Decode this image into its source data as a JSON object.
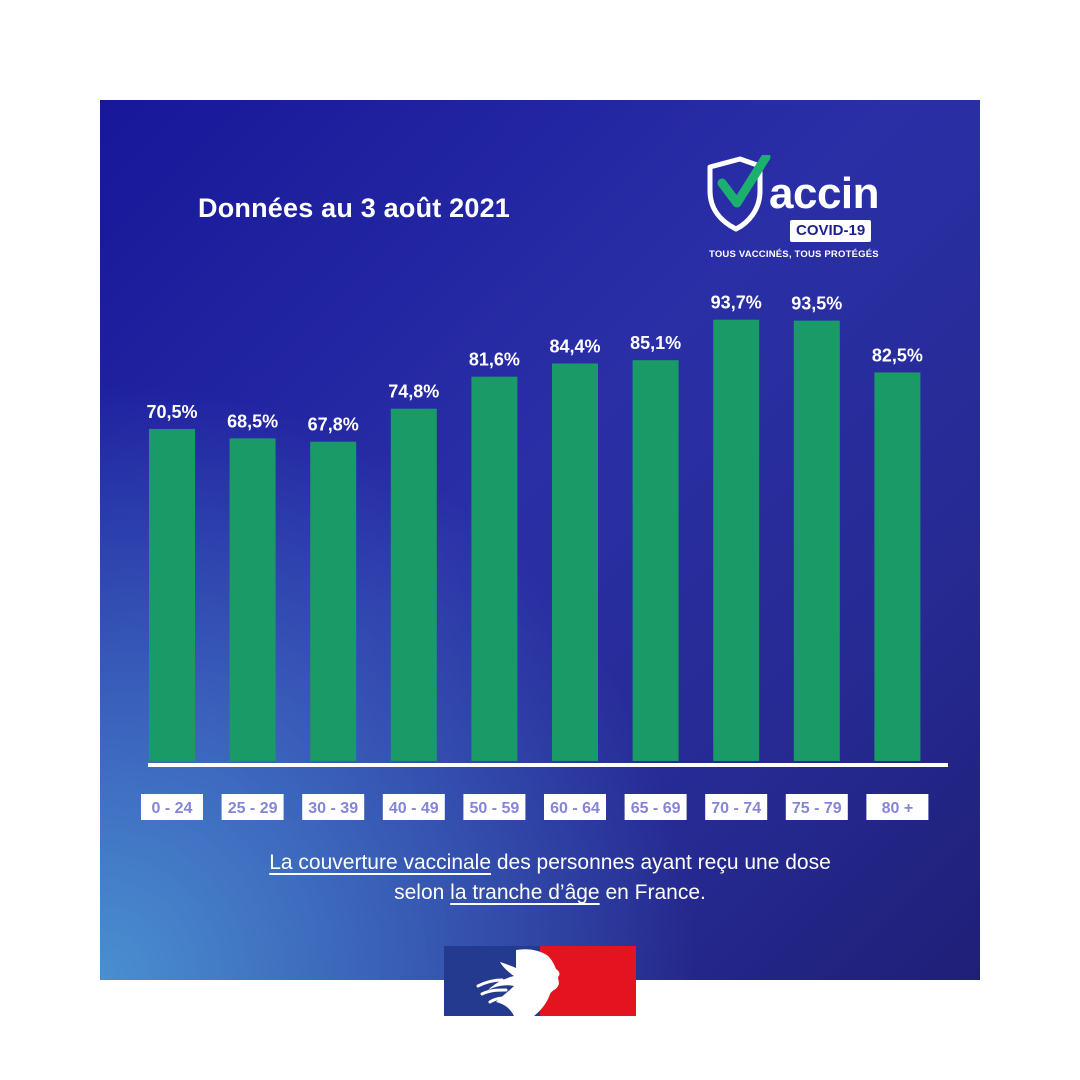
{
  "header": {
    "title": "Données au 3 août 2021"
  },
  "logo": {
    "word": "accin",
    "badge": "COVID-19",
    "tagline": "TOUS VACCINÉS, TOUS PROTÉGÉS"
  },
  "caption": {
    "line1_part1": "La couverture vaccinale",
    "line1_part2": " des personnes ayant reçu une dose",
    "line2_part1": "selon ",
    "line2_part2": "la tranche d’âge",
    "line2_part3": " en France."
  },
  "colors": {
    "bar": "#1a9a66",
    "background_top": "#17179a",
    "background_accent": "#4a8fd0",
    "label_text": "#8585d8",
    "flag_blue": "#243a8f",
    "flag_red": "#e3141f"
  },
  "chart_data": {
    "type": "bar",
    "categories": [
      "0 - 24",
      "25 - 29",
      "30 - 39",
      "40 - 49",
      "50 - 59",
      "60 - 64",
      "65 - 69",
      "70 - 74",
      "75 - 79",
      "80 +"
    ],
    "values": [
      70.5,
      68.5,
      67.8,
      74.8,
      81.6,
      84.4,
      85.1,
      93.7,
      93.5,
      82.5
    ],
    "value_labels": [
      "70,5%",
      "68,5%",
      "67,8%",
      "74,8%",
      "81,6%",
      "84,4%",
      "85,1%",
      "93,7%",
      "93,5%",
      "82,5%"
    ],
    "title": "",
    "xlabel": "",
    "ylabel": "",
    "ylim": [
      0,
      100
    ],
    "grid": false,
    "legend": "none"
  }
}
